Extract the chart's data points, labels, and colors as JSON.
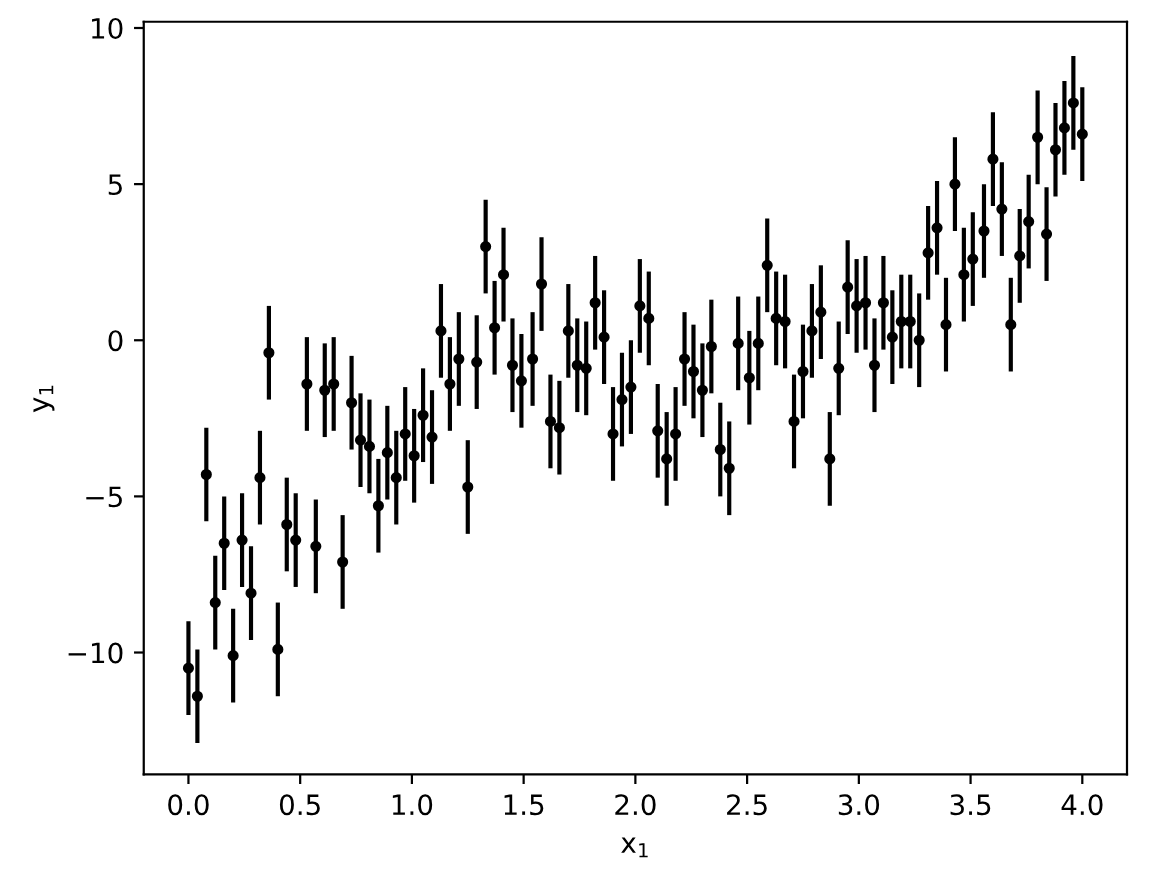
{
  "chart_data": {
    "type": "scatter",
    "xlabel": "x$_{1}$",
    "ylabel": "y$_{1}$",
    "x": [
      0.0,
      0.04,
      0.08,
      0.12,
      0.16,
      0.2,
      0.24,
      0.28,
      0.32,
      0.36,
      0.4,
      0.44,
      0.48,
      0.53,
      0.57,
      0.61,
      0.65,
      0.69,
      0.73,
      0.77,
      0.81,
      0.85,
      0.89,
      0.93,
      0.97,
      1.01,
      1.05,
      1.09,
      1.13,
      1.17,
      1.21,
      1.25,
      1.29,
      1.33,
      1.37,
      1.41,
      1.45,
      1.49,
      1.54,
      1.58,
      1.62,
      1.66,
      1.7,
      1.74,
      1.78,
      1.82,
      1.86,
      1.9,
      1.94,
      1.98,
      2.02,
      2.06,
      2.1,
      2.14,
      2.18,
      2.22,
      2.26,
      2.3,
      2.34,
      2.38,
      2.42,
      2.46,
      2.51,
      2.55,
      2.59,
      2.63,
      2.67,
      2.71,
      2.75,
      2.79,
      2.83,
      2.87,
      2.91,
      2.95,
      2.99,
      3.03,
      3.07,
      3.11,
      3.15,
      3.19,
      3.23,
      3.27,
      3.31,
      3.35,
      3.39,
      3.43,
      3.47,
      3.51,
      3.56,
      3.6,
      3.64,
      3.68,
      3.72,
      3.76,
      3.8,
      3.84,
      3.88,
      3.92,
      3.96,
      4.0
    ],
    "series": [
      {
        "color": "#000000",
        "values": [
          -10.5,
          -11.4,
          -4.3,
          -8.4,
          -6.5,
          -10.1,
          -6.4,
          -8.1,
          -4.4,
          -0.4,
          -9.9,
          -5.9,
          -6.4,
          -1.4,
          -6.6,
          -1.6,
          -1.4,
          -7.1,
          -2.0,
          -3.2,
          -3.4,
          -5.3,
          -3.6,
          -4.4,
          -3.0,
          -3.7,
          -2.4,
          -3.1,
          0.3,
          -1.4,
          -0.6,
          -4.7,
          -0.7,
          3.0,
          0.4,
          2.1,
          -0.8,
          -1.3,
          -0.6,
          1.8,
          -2.6,
          -2.8,
          0.3,
          -0.8,
          -0.9,
          1.2,
          0.1,
          -3.0,
          -1.9,
          -1.5,
          1.1,
          0.7,
          -2.9,
          -3.8,
          -3.0,
          -0.6,
          -1.0,
          -1.6,
          -0.2,
          -3.5,
          -4.1,
          -0.1,
          -1.2,
          -0.1,
          2.4,
          0.7,
          0.6,
          -2.6,
          -1.0,
          0.3,
          0.9,
          -3.8,
          -0.9,
          1.7,
          1.1,
          1.2,
          -0.8,
          1.2,
          0.1,
          0.6,
          0.6,
          0.0,
          2.8,
          3.6,
          0.5,
          5.0,
          2.1,
          2.6,
          3.5,
          5.8,
          4.2,
          0.5,
          2.7,
          3.8,
          6.5,
          3.4,
          6.1,
          6.8,
          7.6,
          6.6
        ],
        "errors": [
          1.5,
          1.5,
          1.5,
          1.5,
          1.5,
          1.5,
          1.5,
          1.5,
          1.5,
          1.5,
          1.5,
          1.5,
          1.5,
          1.5,
          1.5,
          1.5,
          1.5,
          1.5,
          1.5,
          1.5,
          1.5,
          1.5,
          1.5,
          1.5,
          1.5,
          1.5,
          1.5,
          1.5,
          1.5,
          1.5,
          1.5,
          1.5,
          1.5,
          1.5,
          1.5,
          1.5,
          1.5,
          1.5,
          1.5,
          1.5,
          1.5,
          1.5,
          1.5,
          1.5,
          1.5,
          1.5,
          1.5,
          1.5,
          1.5,
          1.5,
          1.5,
          1.5,
          1.5,
          1.5,
          1.5,
          1.5,
          1.5,
          1.5,
          1.5,
          1.5,
          1.5,
          1.5,
          1.5,
          1.5,
          1.5,
          1.5,
          1.5,
          1.5,
          1.5,
          1.5,
          1.5,
          1.5,
          1.5,
          1.5,
          1.5,
          1.5,
          1.5,
          1.5,
          1.5,
          1.5,
          1.5,
          1.5,
          1.5,
          1.5,
          1.5,
          1.5,
          1.5,
          1.5,
          1.5,
          1.5,
          1.5,
          1.5,
          1.5,
          1.5,
          1.5,
          1.5,
          1.5,
          1.5,
          1.5,
          1.5
        ]
      }
    ],
    "marker": "circle",
    "grid": false,
    "xlim": [
      -0.2,
      4.2
    ],
    "ylim": [
      -13.9,
      10.2
    ],
    "xticks": [
      {
        "value": 0.0,
        "label": "0.0"
      },
      {
        "value": 0.5,
        "label": "0.5"
      },
      {
        "value": 1.0,
        "label": "1.0"
      },
      {
        "value": 1.5,
        "label": "1.5"
      },
      {
        "value": 2.0,
        "label": "2.0"
      },
      {
        "value": 2.5,
        "label": "2.5"
      },
      {
        "value": 3.0,
        "label": "3.0"
      },
      {
        "value": 3.5,
        "label": "3.5"
      },
      {
        "value": 4.0,
        "label": "4.0"
      }
    ],
    "yticks": [
      {
        "value": -10,
        "label": "−10"
      },
      {
        "value": -5,
        "label": "−5"
      },
      0,
      5,
      10
    ]
  }
}
